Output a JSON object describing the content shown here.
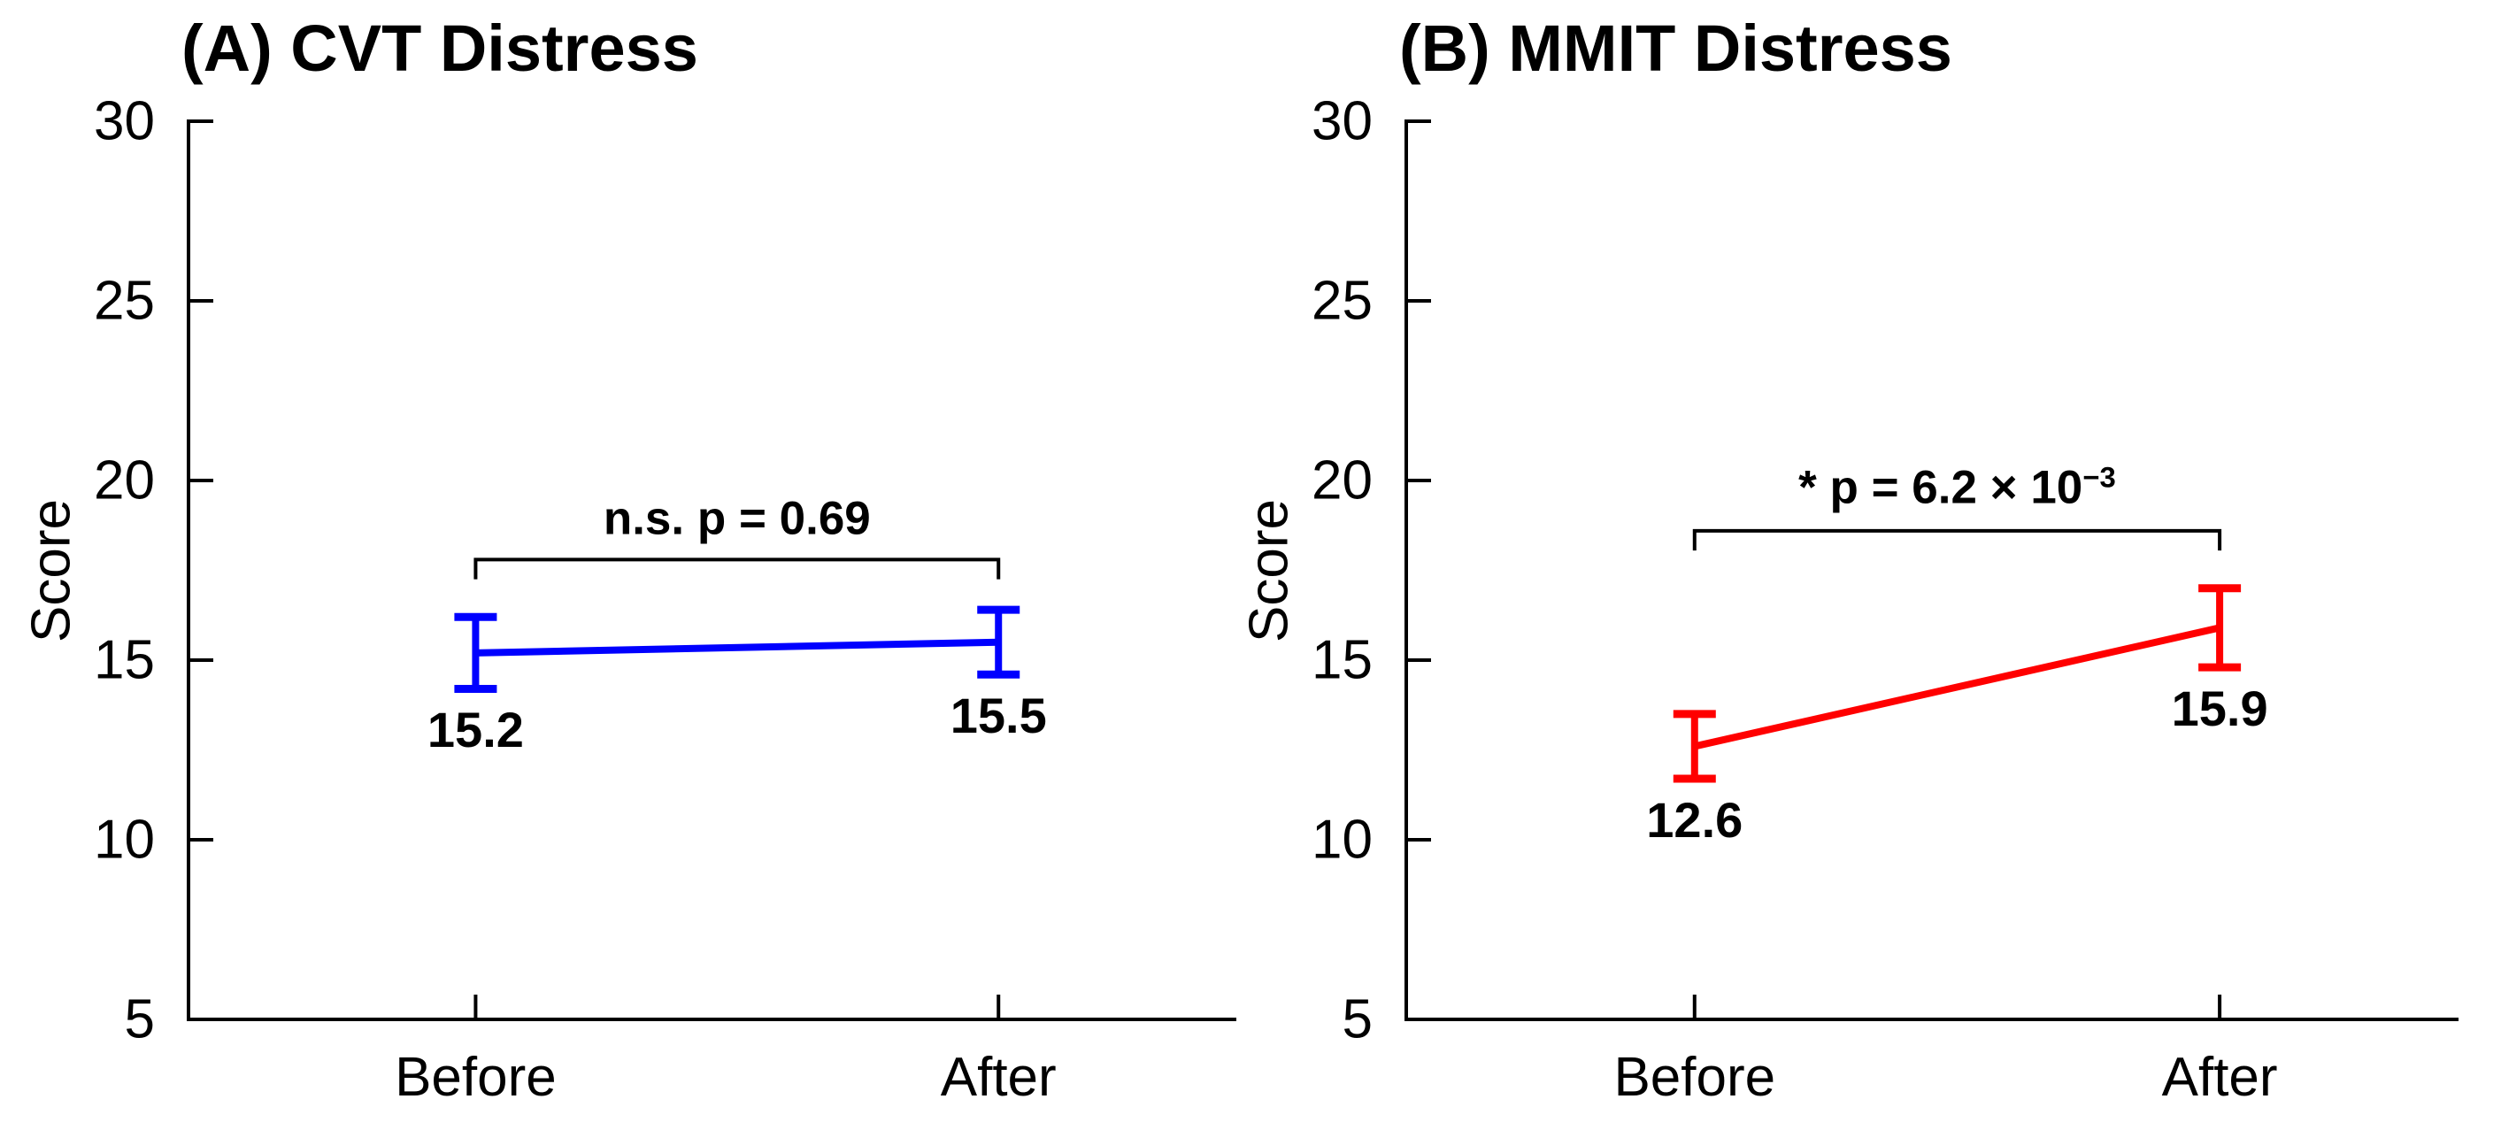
{
  "figure": {
    "background": "#ffffff",
    "axis_color": "#000000",
    "text_color": "#000000"
  },
  "chart_data": [
    {
      "type": "line",
      "panel": "A",
      "title": "(A) CVT Distress",
      "ylabel": "Score",
      "ylim": [
        5,
        30
      ],
      "yticks": [
        30,
        25,
        20,
        15,
        10,
        5
      ],
      "categories": [
        "Before",
        "After"
      ],
      "series": [
        {
          "name": "CVT Distress",
          "color": "#0000ff",
          "values": [
            15.2,
            15.5
          ],
          "errors": [
            1.0,
            0.9
          ]
        }
      ],
      "point_labels": [
        "15.2",
        "15.5"
      ],
      "annotation": {
        "text": "n.s. p = 0.69",
        "base": "n.s. p = 0.69",
        "sup": "",
        "significant": false,
        "bracket_y": 17.8,
        "tick_drop": 0.55,
        "text_y": 18.95
      },
      "legend": "none",
      "grid": false
    },
    {
      "type": "line",
      "panel": "B",
      "title": "(B) MMIT Distress",
      "ylabel": "Score",
      "ylim": [
        5,
        30
      ],
      "yticks": [
        30,
        25,
        20,
        15,
        10,
        5
      ],
      "categories": [
        "Before",
        "After"
      ],
      "series": [
        {
          "name": "MMIT Distress",
          "color": "#ff0000",
          "values": [
            12.6,
            15.9
          ],
          "errors": [
            0.9,
            1.1
          ]
        }
      ],
      "point_labels": [
        "12.6",
        "15.9"
      ],
      "annotation": {
        "text": "* p = 6.2 × 10⁻³",
        "base": "* p = 6.2 × 10",
        "sup": "−3",
        "significant": true,
        "bracket_y": 18.6,
        "tick_drop": 0.55,
        "text_y": 19.8
      },
      "legend": "none",
      "grid": false
    }
  ]
}
